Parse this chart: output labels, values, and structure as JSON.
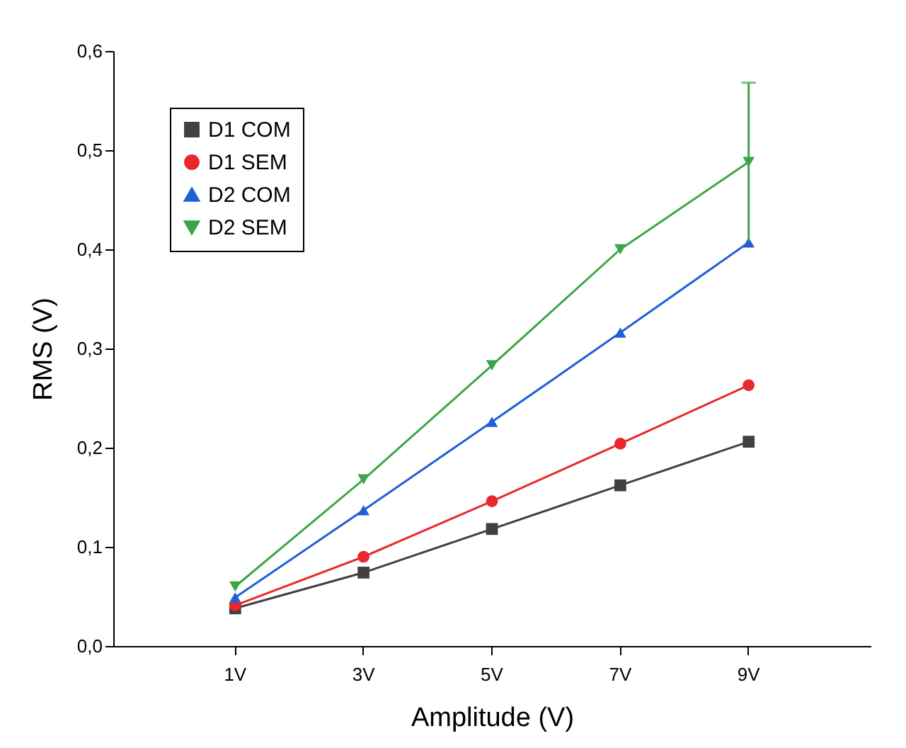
{
  "chart_data": {
    "type": "line",
    "xlabel": "Amplitude (V)",
    "ylabel": "RMS (V)",
    "categories": [
      "1V",
      "3V",
      "5V",
      "7V",
      "9V"
    ],
    "ylim": [
      0,
      0.6
    ],
    "yticks": [
      {
        "value": 0,
        "label": "0,0"
      },
      {
        "value": 0.1,
        "label": "0,1"
      },
      {
        "value": 0.2,
        "label": "0,2"
      },
      {
        "value": 0.3,
        "label": "0,3"
      },
      {
        "value": 0.4,
        "label": "0,4"
      },
      {
        "value": 0.5,
        "label": "0,5"
      },
      {
        "value": 0.6,
        "label": "0,6"
      }
    ],
    "grid": false,
    "legend": "top left",
    "series": [
      {
        "name": "D1 COM",
        "color": "#404040",
        "marker": "square",
        "values": [
          0.038,
          0.074,
          0.118,
          0.162,
          0.206
        ]
      },
      {
        "name": "D1 SEM",
        "color": "#e8282b",
        "marker": "circle",
        "values": [
          0.041,
          0.09,
          0.146,
          0.204,
          0.263
        ]
      },
      {
        "name": "D2 COM",
        "color": "#1f5fd6",
        "marker": "triangle",
        "values": [
          0.049,
          0.137,
          0.226,
          0.316,
          0.407
        ]
      },
      {
        "name": "D2 SEM",
        "color": "#3aa647",
        "marker": "triangle-down",
        "values": [
          0.06,
          0.168,
          0.283,
          0.4,
          0.488
        ],
        "errors": [
          null,
          null,
          null,
          null,
          0.08
        ]
      }
    ]
  }
}
